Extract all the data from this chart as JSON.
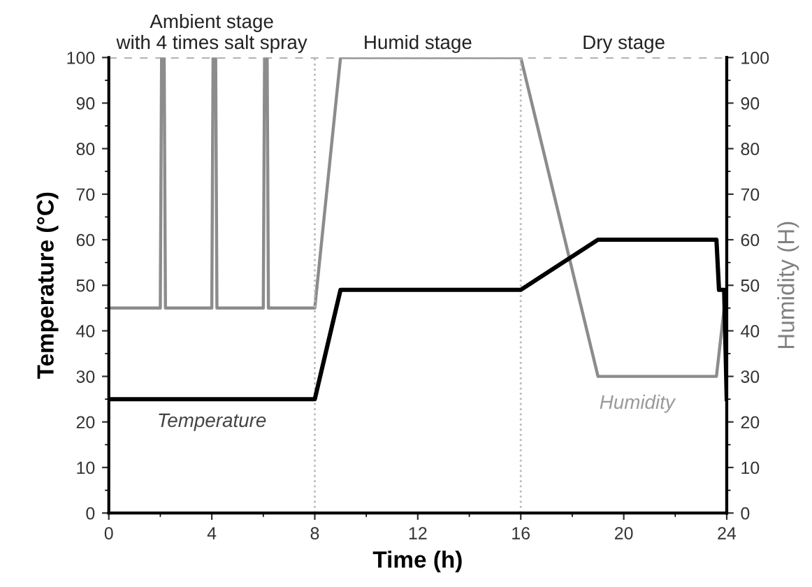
{
  "chart_data": {
    "type": "line",
    "xlabel": "Time (h)",
    "ylabel": "Temperature (°C)",
    "y2label": "Humidity (H)",
    "xlim": [
      0,
      24
    ],
    "xticks": [
      0,
      4,
      8,
      12,
      16,
      20,
      24
    ],
    "ylim": [
      0,
      100
    ],
    "yticks": [
      0,
      10,
      20,
      30,
      40,
      50,
      60,
      70,
      80,
      90,
      100
    ],
    "y2lim": [
      0,
      100
    ],
    "y2ticks": [
      0,
      10,
      20,
      30,
      40,
      50,
      60,
      70,
      80,
      90,
      100
    ],
    "grid": false,
    "legend": false,
    "marker": "none",
    "line_style": "solid",
    "series": [
      {
        "color": "#000000",
        "x": [
          0,
          8,
          9,
          16,
          19,
          23.6,
          23.7,
          23.9,
          24
        ],
        "values": [
          25,
          25,
          49,
          49,
          60,
          60,
          49,
          49,
          25
        ]
      },
      {
        "color": "#8c8c8c",
        "axis": "y2",
        "x": [
          0,
          2.0,
          2.05,
          2.15,
          2.2,
          4.0,
          4.05,
          4.15,
          4.2,
          6.0,
          6.05,
          6.15,
          6.2,
          8,
          9,
          16,
          19,
          23.6,
          23.9,
          24
        ],
        "values": [
          45,
          45,
          100,
          100,
          45,
          45,
          100,
          100,
          45,
          45,
          100,
          100,
          45,
          45,
          100,
          100,
          30,
          30,
          45,
          45
        ]
      }
    ],
    "ref_lines": [
      {
        "axis": "y",
        "value": 100,
        "color": "#999999",
        "line_style": "dashed"
      },
      {
        "axis": "x",
        "value": 8,
        "color": "#bbbbbb",
        "line_style": "dotted"
      },
      {
        "axis": "x",
        "value": 16,
        "color": "#bbbbbb",
        "line_style": "dotted"
      }
    ],
    "annotations": [
      "Ambient stage\nwith 4 times salt spray",
      "Humid stage",
      "Dry stage",
      "Temperature",
      "Humidity"
    ]
  }
}
